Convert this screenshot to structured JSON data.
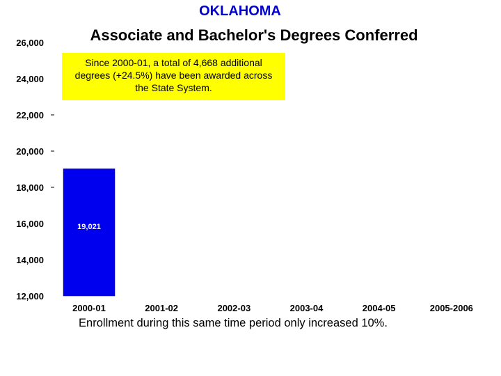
{
  "header": {
    "state": "OKLAHOMA",
    "title": "Associate and Bachelor's Degrees Conferred"
  },
  "callout": {
    "text": "Since 2000-01, a total of 4,668 additional degrees (+24.5%) have been awarded across the State System."
  },
  "footnote": "Enrollment during this same time period only increased 10%.",
  "colors": {
    "bar": "#0000ee",
    "callout_bg": "#ffff00",
    "state_title": "#0000cc"
  },
  "chart_data": {
    "type": "bar",
    "title": "Associate and Bachelor's Degrees Conferred",
    "categories": [
      "2000-01",
      "2001-02",
      "2002-03",
      "2003-04",
      "2004-05",
      "2005-2006"
    ],
    "series": [
      {
        "values": [
          19021,
          null,
          null,
          null,
          null,
          null
        ]
      }
    ],
    "data_labels": [
      "19,021",
      "",
      "",
      "",
      "",
      ""
    ],
    "ylim": [
      12000,
      26000
    ],
    "yticks": [
      12000,
      14000,
      16000,
      18000,
      20000,
      22000,
      24000,
      26000
    ],
    "ytick_labels": [
      "12,000",
      "14,000",
      "16,000",
      "18,000",
      "20,000",
      "22,000",
      "24,000",
      "26,000"
    ],
    "xlabel": "",
    "ylabel": "",
    "grid": false,
    "legend": "none"
  }
}
